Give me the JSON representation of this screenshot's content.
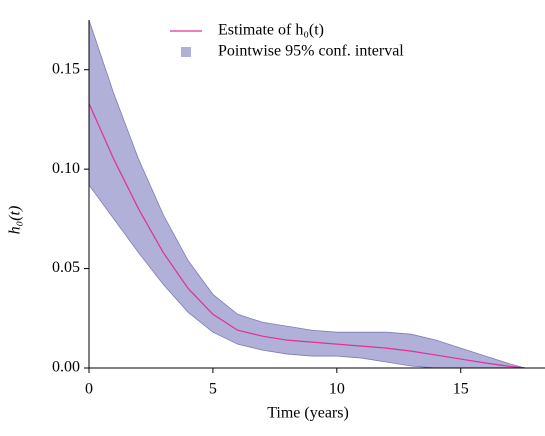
{
  "chart_data": {
    "type": "line",
    "xlabel": "Time (years)",
    "ylabel": "h₀(t)",
    "x": [
      0,
      1,
      2,
      3,
      4,
      5,
      6,
      7,
      8,
      9,
      10,
      11,
      12,
      13,
      14,
      15,
      16,
      17,
      17.6
    ],
    "series": [
      {
        "name": "Estimate of h₀(t)",
        "color": "#e0309a",
        "values": [
          0.133,
          0.105,
          0.08,
          0.058,
          0.04,
          0.027,
          0.019,
          0.016,
          0.014,
          0.013,
          0.012,
          0.011,
          0.01,
          0.0085,
          0.0065,
          0.0045,
          0.0025,
          0.0008,
          0
        ]
      }
    ],
    "band": {
      "name": "Pointwise 95% conf. interval",
      "color": "#b0b0d8",
      "edge_color": "#7d7db8",
      "lower": [
        0.092,
        0.075,
        0.058,
        0.042,
        0.028,
        0.018,
        0.012,
        0.009,
        0.007,
        0.006,
        0.006,
        0.005,
        0.003,
        0.001,
        0,
        0,
        0,
        0,
        0
      ],
      "upper": [
        0.175,
        0.138,
        0.105,
        0.077,
        0.054,
        0.037,
        0.027,
        0.023,
        0.021,
        0.019,
        0.018,
        0.018,
        0.018,
        0.017,
        0.014,
        0.01,
        0.006,
        0.002,
        0
      ]
    },
    "xlim": [
      0,
      18.4
    ],
    "xticks": [
      0,
      5,
      10,
      15
    ],
    "ylim": [
      0,
      0.175
    ],
    "yticks": [
      {
        "value": 0,
        "label": "0.00"
      },
      {
        "value": 0.05,
        "label": "0.05"
      },
      {
        "value": 0.1,
        "label": "0.10"
      },
      {
        "value": 0.15,
        "label": "0.15"
      }
    ],
    "grid": false,
    "legend": "top"
  }
}
